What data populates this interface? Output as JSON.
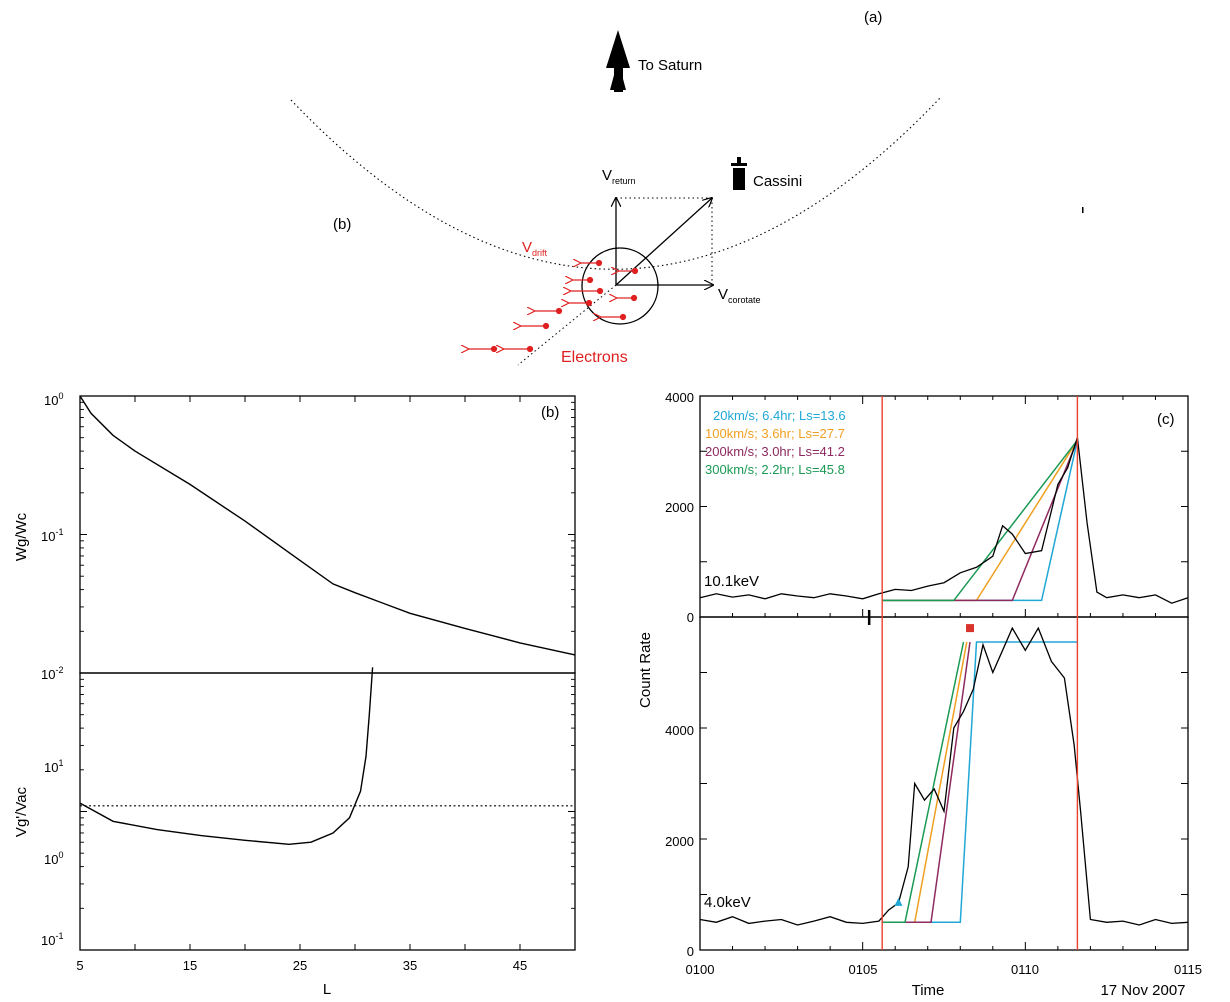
{
  "figure": {
    "panel_a": {
      "label": "(a)",
      "region_label": "(b)",
      "to_saturn": "To Saturn",
      "cassini": "Cassini",
      "v": "V",
      "return_sub": "return",
      "corotate_sub": "corotate",
      "drift_sub": "drift",
      "electrons": "Electrons",
      "red_color": "#e02020"
    },
    "panel_b": {
      "label": "(b)",
      "xlabel": "L",
      "x_ticks": [
        "5",
        "15",
        "25",
        "35",
        "45"
      ],
      "top_ylabel": "Wg/Wc",
      "bottom_ylabel": "Vg'/Vac",
      "top_y_ticks": [
        {
          "base": "10",
          "exp": "0"
        },
        {
          "base": "10",
          "exp": "-1"
        },
        {
          "base": "10",
          "exp": "-2"
        }
      ],
      "bottom_y_ticks": [
        {
          "base": "10",
          "exp": "1"
        },
        {
          "base": "10",
          "exp": "0"
        },
        {
          "base": "10",
          "exp": "-1"
        }
      ]
    },
    "panel_c": {
      "label": "(c)",
      "ylabel": "Count Rate",
      "xlabel": "Time",
      "date": "17 Nov 2007",
      "x_ticks": [
        "0100",
        "0105",
        "0110",
        "0115"
      ],
      "top_y_ticks": [
        "4000",
        "2000",
        "0"
      ],
      "bottom_y_ticks": [
        "4000",
        "2000",
        "0"
      ],
      "top_energy": "10.1keV",
      "bottom_energy": "4.0keV",
      "legend": [
        {
          "text": "20km/s; 6.4hr; Ls=13.6",
          "color": "#1fa7d6"
        },
        {
          "text": "100km/s; 3.6hr; Ls=27.7",
          "color": "#f0a020"
        },
        {
          "text": "200km/s; 3.0hr; Ls=41.2",
          "color": "#8e2a60"
        },
        {
          "text": "300km/s; 2.2hr; Ls=45.8",
          "color": "#1a9a55"
        }
      ],
      "vline_color": "#e8412c"
    }
  },
  "chart_data": [
    {
      "type": "line",
      "panel": "b-top",
      "xlabel": "L",
      "ylabel": "Wg/Wc",
      "yscale": "log",
      "xlim": [
        5,
        50
      ],
      "ylim": [
        0.01,
        1
      ],
      "series": [
        {
          "x": [
            5,
            6,
            8,
            10,
            15,
            20,
            25,
            28,
            30,
            35,
            40,
            45,
            50
          ],
          "values": [
            1.0,
            0.75,
            0.52,
            0.4,
            0.23,
            0.125,
            0.065,
            0.044,
            0.038,
            0.027,
            0.021,
            0.0165,
            0.0135
          ]
        }
      ]
    },
    {
      "type": "line",
      "panel": "b-bottom",
      "xlabel": "L",
      "ylabel": "Vg'/Vac",
      "yscale": "log",
      "xlim": [
        5,
        50
      ],
      "ylim": [
        0.1,
        10
      ],
      "series": [
        {
          "x": [
            5,
            8,
            12,
            16,
            20,
            24,
            26,
            28,
            29.5,
            30.5,
            31,
            31.3,
            31.6
          ],
          "values": [
            1.15,
            0.85,
            0.74,
            0.67,
            0.62,
            0.58,
            0.6,
            0.7,
            0.9,
            1.4,
            2.5,
            5.0,
            11.0
          ]
        },
        {
          "x": [
            5,
            50
          ],
          "values": [
            1.1,
            1.1
          ]
        }
      ]
    },
    {
      "type": "line",
      "panel": "c-top",
      "title": "10.1keV",
      "xlabel": "Time",
      "ylabel": "Count Rate",
      "xlim": [
        100,
        115
      ],
      "ylim": [
        0,
        4000
      ],
      "vlines": [
        105.6,
        111.6
      ],
      "series": [
        {
          "name": "10.1keV",
          "x": [
            100,
            100.5,
            101,
            101.5,
            102,
            102.5,
            103,
            103.5,
            104,
            104.5,
            105,
            105.5,
            106,
            106.5,
            107,
            107.5,
            108,
            108.5,
            109,
            109.3,
            109.6,
            110,
            110.5,
            111,
            111.3,
            111.6,
            111.9,
            112.2,
            112.5,
            113,
            113.5,
            114,
            114.5,
            115
          ],
          "values": [
            350,
            420,
            360,
            400,
            330,
            420,
            380,
            350,
            420,
            380,
            330,
            420,
            500,
            480,
            560,
            620,
            800,
            900,
            1100,
            1650,
            1500,
            1150,
            1200,
            2400,
            2700,
            3250,
            1700,
            450,
            350,
            400,
            350,
            400,
            250,
            350
          ]
        },
        {
          "name": "20km/s; 6.4hr; Ls=13.6",
          "x": [
            105.6,
            110.5,
            111.6
          ],
          "values": [
            300,
            300,
            3200
          ]
        },
        {
          "name": "100km/s; 3.6hr; Ls=27.7",
          "x": [
            105.6,
            108.5,
            111.6
          ],
          "values": [
            300,
            300,
            3200
          ]
        },
        {
          "name": "200km/s; 3.0hr; Ls=41.2",
          "x": [
            105.6,
            109.6,
            111.6
          ],
          "values": [
            300,
            300,
            3200
          ]
        },
        {
          "name": "300km/s; 2.2hr; Ls=45.8",
          "x": [
            105.6,
            107.8,
            111.6
          ],
          "values": [
            300,
            300,
            3200
          ]
        }
      ]
    },
    {
      "type": "line",
      "panel": "c-bottom",
      "title": "4.0keV",
      "xlabel": "Time",
      "ylabel": "Count Rate",
      "xlim": [
        100,
        115
      ],
      "ylim": [
        0,
        6000
      ],
      "vlines": [
        105.6,
        111.6
      ],
      "series": [
        {
          "name": "4.0keV",
          "x": [
            100,
            100.5,
            101,
            101.5,
            102,
            102.5,
            103,
            103.5,
            104,
            104.5,
            105,
            105.5,
            105.8,
            106.1,
            106.4,
            106.6,
            106.9,
            107.2,
            107.5,
            107.8,
            108.1,
            108.4,
            108.7,
            109,
            109.3,
            109.6,
            110,
            110.4,
            110.8,
            111.2,
            111.5,
            111.7,
            112,
            112.5,
            113,
            113.5,
            114,
            114.5,
            115
          ],
          "values": [
            550,
            500,
            600,
            480,
            520,
            550,
            450,
            520,
            600,
            500,
            480,
            520,
            720,
            850,
            1500,
            3000,
            2700,
            2900,
            2500,
            4000,
            4300,
            4700,
            5500,
            5000,
            5400,
            5800,
            5400,
            5800,
            5200,
            4900,
            3700,
            2500,
            550,
            500,
            520,
            450,
            550,
            480,
            500
          ]
        },
        {
          "name": "20km/s; 6.4hr; Ls=13.6",
          "x": [
            105.6,
            108.0,
            108.5,
            111.6
          ],
          "values": [
            500,
            500,
            5550,
            5550
          ]
        },
        {
          "name": "100km/s; 3.6hr; Ls=27.7",
          "x": [
            105.6,
            106.6,
            108.2
          ],
          "values": [
            500,
            500,
            5550
          ]
        },
        {
          "name": "200km/s; 3.0hr; Ls=41.2",
          "x": [
            105.6,
            107.1,
            108.3
          ],
          "values": [
            500,
            500,
            5550
          ]
        },
        {
          "name": "300km/s; 2.2hr; Ls=45.8",
          "x": [
            105.6,
            106.3,
            108.1
          ],
          "values": [
            500,
            500,
            5550
          ]
        }
      ]
    }
  ]
}
